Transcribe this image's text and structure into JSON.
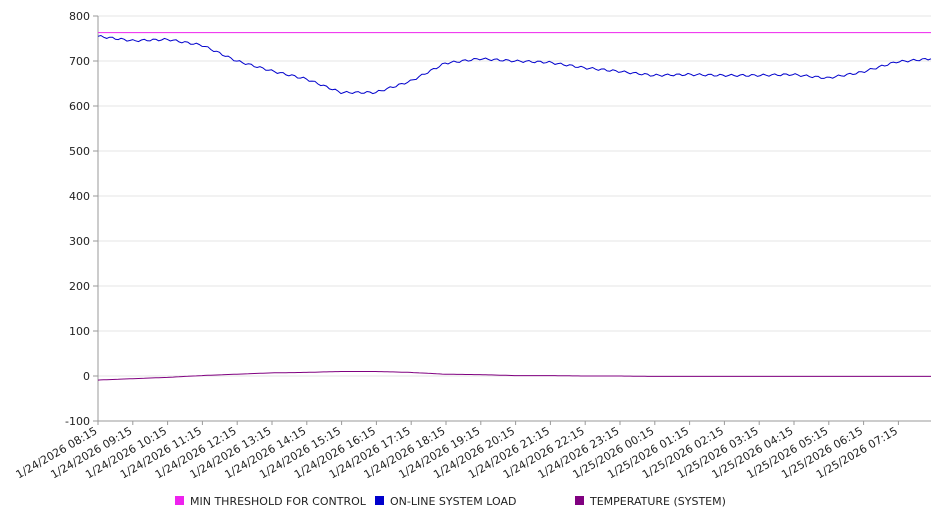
{
  "chart_data": {
    "type": "line",
    "ylim": [
      -100,
      800
    ],
    "y_ticks": [
      800,
      700,
      600,
      500,
      400,
      300,
      200,
      100,
      0,
      -100
    ],
    "x_ticks": [
      "1/24/2026 08:15",
      "1/24/2026 09:15",
      "1/24/2026 10:15",
      "1/24/2026 11:15",
      "1/24/2026 12:15",
      "1/24/2026 13:15",
      "1/24/2026 14:15",
      "1/24/2026 15:15",
      "1/24/2026 16:15",
      "1/24/2026 17:15",
      "1/24/2026 18:15",
      "1/24/2026 19:15",
      "1/24/2026 20:15",
      "1/24/2026 21:15",
      "1/24/2026 22:15",
      "1/24/2026 23:15",
      "1/25/2026 00:15",
      "1/25/2026 01:15",
      "1/25/2026 02:15",
      "1/25/2026 03:15",
      "1/25/2026 04:15",
      "1/25/2026 05:15",
      "1/25/2026 06:15",
      "1/25/2026 07:15"
    ],
    "grid": true,
    "legend_position": "bottom",
    "series": [
      {
        "name": "MIN THRESHOLD FOR CONTROL",
        "color": "#ee22ee",
        "values": [
          763,
          763,
          763,
          763,
          763,
          763,
          763,
          763,
          763,
          763,
          763,
          763,
          763,
          763,
          763,
          763,
          763,
          763,
          763,
          763,
          763,
          763,
          763,
          763,
          763
        ]
      },
      {
        "name": "ON-LINE SYSTEM LOAD",
        "color": "#0000cc",
        "values": [
          755,
          745,
          748,
          735,
          700,
          678,
          660,
          630,
          630,
          655,
          695,
          705,
          700,
          697,
          685,
          677,
          668,
          670,
          668,
          668,
          670,
          662,
          675,
          698,
          705
        ]
      },
      {
        "name": "TEMPERATURE (SYSTEM)",
        "color": "#800080",
        "values": [
          -9,
          -6,
          -3,
          1,
          4,
          7,
          8,
          10,
          10,
          8,
          4,
          3,
          1,
          1,
          0,
          0,
          -1,
          -1,
          -1,
          -1,
          -1,
          -1,
          -1,
          -1,
          -1
        ]
      }
    ]
  }
}
